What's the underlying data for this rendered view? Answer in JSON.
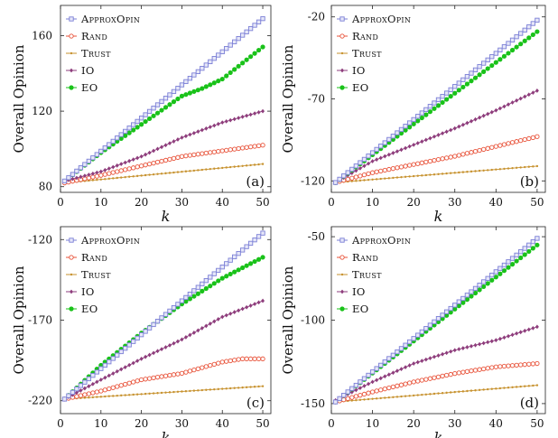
{
  "colors": {
    "ApproxOpin": "#7b7fd6",
    "Rand": "#e8533a",
    "Trust": "#c7922f",
    "IO": "#8e3d7c",
    "EO": "#19c219"
  },
  "chart_data": [
    {
      "type": "line",
      "panel_label": "(a)",
      "xlabel": "k",
      "ylabel": "Overall Opinion",
      "xlim": [
        0,
        52
      ],
      "ylim": [
        77,
        176
      ],
      "xticks": [
        0,
        10,
        20,
        30,
        40,
        50
      ],
      "yticks": [
        80,
        120,
        160
      ],
      "legend_position": "top-left",
      "series": [
        {
          "name": "ApproxOpin",
          "key": "ApproxOpin",
          "x": [
            1,
            50
          ],
          "values": [
            83,
            169
          ]
        },
        {
          "name": "Rand",
          "key": "Rand",
          "x": [
            1,
            10,
            20,
            30,
            40,
            50
          ],
          "values": [
            82,
            86,
            91,
            96,
            99,
            102
          ]
        },
        {
          "name": "Trust",
          "key": "Trust",
          "x": [
            1,
            50
          ],
          "values": [
            82,
            92
          ]
        },
        {
          "name": "IO",
          "key": "IO",
          "x": [
            1,
            10,
            20,
            30,
            40,
            50
          ],
          "values": [
            83,
            88,
            96,
            106,
            114,
            120
          ]
        },
        {
          "name": "EO",
          "key": "EO",
          "x": [
            1,
            10,
            20,
            30,
            35,
            40,
            50
          ],
          "values": [
            83,
            98,
            113,
            128,
            132,
            137,
            154
          ]
        }
      ]
    },
    {
      "type": "line",
      "panel_label": "(b)",
      "xlabel": "k",
      "ylabel": "Overall Opinion",
      "xlim": [
        0,
        52
      ],
      "ylim": [
        -127,
        -13
      ],
      "xticks": [
        0,
        10,
        20,
        30,
        40,
        50
      ],
      "yticks": [
        -120,
        -70,
        -20
      ],
      "legend_position": "top-left",
      "series": [
        {
          "name": "ApproxOpin",
          "key": "ApproxOpin",
          "x": [
            1,
            50
          ],
          "values": [
            -121,
            -22
          ]
        },
        {
          "name": "Rand",
          "key": "Rand",
          "x": [
            1,
            10,
            20,
            30,
            40,
            50
          ],
          "values": [
            -121,
            -115,
            -110,
            -105,
            -99,
            -93
          ]
        },
        {
          "name": "Trust",
          "key": "Trust",
          "x": [
            1,
            50
          ],
          "values": [
            -121,
            -111
          ]
        },
        {
          "name": "IO",
          "key": "IO",
          "x": [
            1,
            10,
            20,
            30,
            40,
            50
          ],
          "values": [
            -121,
            -108,
            -98,
            -88,
            -77,
            -65
          ]
        },
        {
          "name": "EO",
          "key": "EO",
          "x": [
            1,
            50
          ],
          "values": [
            -121,
            -29
          ]
        }
      ]
    },
    {
      "type": "line",
      "panel_label": "(c)",
      "xlabel": "k",
      "ylabel": "Overall Opinion",
      "xlim": [
        0,
        52
      ],
      "ylim": [
        -228,
        -112
      ],
      "xticks": [
        0,
        10,
        20,
        30,
        40,
        50
      ],
      "yticks": [
        -220,
        -170,
        -120
      ],
      "legend_position": "top-left",
      "series": [
        {
          "name": "ApproxOpin",
          "key": "ApproxOpin",
          "x": [
            1,
            50
          ],
          "values": [
            -219,
            -116
          ]
        },
        {
          "name": "Rand",
          "key": "Rand",
          "x": [
            1,
            10,
            20,
            30,
            40,
            45,
            50
          ],
          "values": [
            -219,
            -214,
            -207,
            -203,
            -196,
            -194,
            -194
          ]
        },
        {
          "name": "Trust",
          "key": "Trust",
          "x": [
            1,
            50
          ],
          "values": [
            -219,
            -211
          ]
        },
        {
          "name": "IO",
          "key": "IO",
          "x": [
            1,
            10,
            20,
            30,
            40,
            50
          ],
          "values": [
            -219,
            -207,
            -194,
            -182,
            -168,
            -158
          ]
        },
        {
          "name": "EO",
          "key": "EO",
          "x": [
            1,
            10,
            20,
            30,
            40,
            50
          ],
          "values": [
            -219,
            -198,
            -178,
            -160,
            -144,
            -131
          ]
        }
      ]
    },
    {
      "type": "line",
      "panel_label": "(d)",
      "xlabel": "k",
      "ylabel": "Overall Opinion",
      "xlim": [
        0,
        52
      ],
      "ylim": [
        -156,
        -44
      ],
      "xticks": [
        0,
        10,
        20,
        30,
        40,
        50
      ],
      "yticks": [
        -150,
        -100,
        -50
      ],
      "legend_position": "top-left",
      "series": [
        {
          "name": "ApproxOpin",
          "key": "ApproxOpin",
          "x": [
            1,
            50
          ],
          "values": [
            -149,
            -51
          ]
        },
        {
          "name": "Rand",
          "key": "Rand",
          "x": [
            1,
            10,
            20,
            30,
            40,
            50
          ],
          "values": [
            -149,
            -143,
            -137,
            -132,
            -128,
            -126
          ]
        },
        {
          "name": "Trust",
          "key": "Trust",
          "x": [
            1,
            50
          ],
          "values": [
            -149,
            -139
          ]
        },
        {
          "name": "IO",
          "key": "IO",
          "x": [
            1,
            10,
            20,
            30,
            40,
            50
          ],
          "values": [
            -148,
            -137,
            -126,
            -118,
            -112,
            -104
          ]
        },
        {
          "name": "EO",
          "key": "EO",
          "x": [
            1,
            50
          ],
          "values": [
            -149,
            -55
          ]
        }
      ]
    }
  ]
}
